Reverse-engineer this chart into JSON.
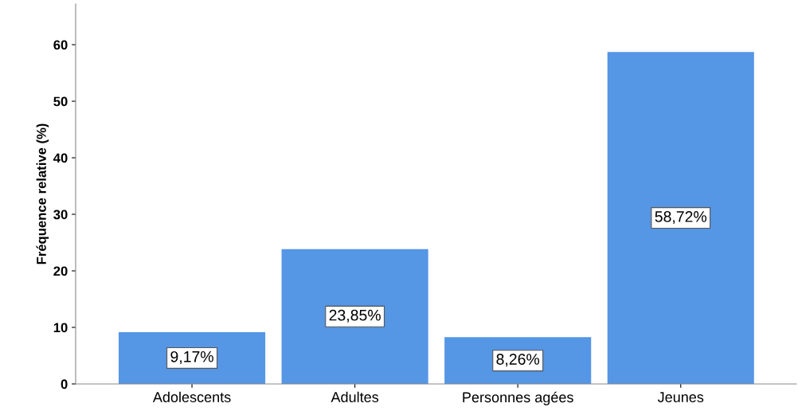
{
  "chart_data": {
    "type": "bar",
    "ylabel": "Fréquence relative (%)",
    "categories": [
      "Adolescents",
      "Adultes",
      "Personnes agées",
      "Jeunes"
    ],
    "values": [
      9.17,
      23.85,
      8.26,
      58.72
    ],
    "value_labels": [
      "9,17%",
      "23,85%",
      "8,26%",
      "58,72%"
    ],
    "color": "#5596e5",
    "ylim": [
      0,
      67.2
    ],
    "yticks": [
      0,
      10,
      20,
      30,
      40,
      50,
      60
    ],
    "grid": false,
    "legend": false
  }
}
